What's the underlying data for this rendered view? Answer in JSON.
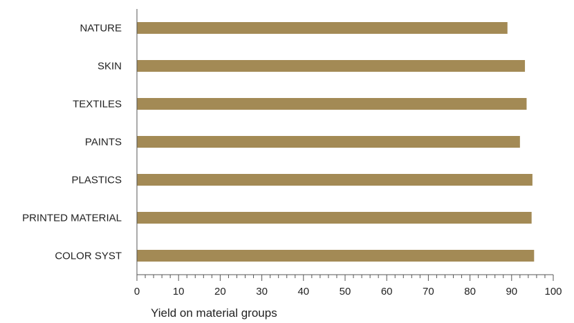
{
  "chart_data": {
    "type": "bar",
    "orientation": "horizontal",
    "categories": [
      "NATURE",
      "SKIN",
      "TEXTILES",
      "PAINTS",
      "PLASTICS",
      "PRINTED MATERIAL",
      "COLOR SYST"
    ],
    "values": [
      89,
      93.2,
      93.6,
      92,
      95,
      94.8,
      95.4
    ],
    "xlabel": "Yield on material groups",
    "ylabel": "",
    "xlim": [
      0,
      100
    ],
    "xticks": [
      0,
      10,
      20,
      30,
      40,
      50,
      60,
      70,
      80,
      90,
      100
    ],
    "xtick_labels": [
      "0",
      "10",
      "20",
      "30",
      "40",
      "50",
      "60",
      "70",
      "80",
      "90",
      "100"
    ],
    "minor_ticks_per_major": 5,
    "grid": false,
    "bar_color": "#A38A55",
    "axis_color": "#555555"
  }
}
